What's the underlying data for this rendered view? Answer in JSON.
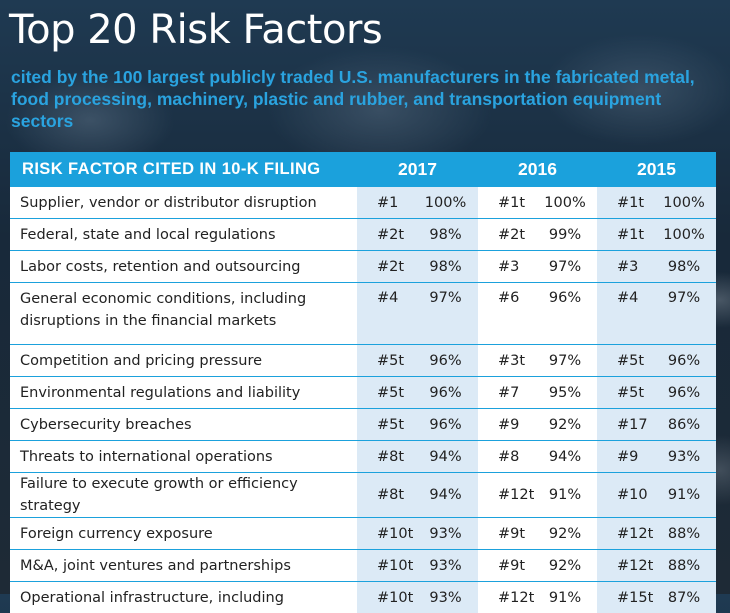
{
  "header": {
    "title": "Top 20 Risk Factors",
    "subtitle": "cited by the 100 largest publicly traded U.S. manufacturers in the fabricated metal, food processing, machinery, plastic and rubber, and transportation equipment sectors"
  },
  "table": {
    "columns": {
      "factor": "RISK FACTOR CITED IN 10-K FILING",
      "years": [
        "2017",
        "2016",
        "2015"
      ]
    },
    "rows": [
      {
        "factor": "Supplier, vendor or distributor disruption",
        "r2017": "#1",
        "p2017": "100%",
        "r2016": "#1t",
        "p2016": "100%",
        "r2015": "#1t",
        "p2015": "100%"
      },
      {
        "factor": "Federal, state and local regulations",
        "r2017": "#2t",
        "p2017": "98%",
        "r2016": "#2t",
        "p2016": "99%",
        "r2015": "#1t",
        "p2015": "100%"
      },
      {
        "factor": "Labor costs, retention and outsourcing",
        "r2017": "#2t",
        "p2017": "98%",
        "r2016": "#3",
        "p2016": "97%",
        "r2015": "#3",
        "p2015": "98%"
      },
      {
        "factor_line1": "General economic conditions, including",
        "factor_line2": "disruptions in the financial markets",
        "r2017": "#4",
        "p2017": "97%",
        "r2016": "#6",
        "p2016": "96%",
        "r2015": "#4",
        "p2015": "97%"
      },
      {
        "factor": "Competition and pricing pressure",
        "r2017": "#5t",
        "p2017": "96%",
        "r2016": "#3t",
        "p2016": "97%",
        "r2015": "#5t",
        "p2015": "96%"
      },
      {
        "factor": "Environmental regulations and liability",
        "r2017": "#5t",
        "p2017": "96%",
        "r2016": "#7",
        "p2016": "95%",
        "r2015": "#5t",
        "p2015": "96%"
      },
      {
        "factor": "Cybersecurity breaches",
        "r2017": "#5t",
        "p2017": "96%",
        "r2016": "#9",
        "p2016": "92%",
        "r2015": "#17",
        "p2015": "86%"
      },
      {
        "factor": "Threats to international operations",
        "r2017": "#8t",
        "p2017": "94%",
        "r2016": "#8",
        "p2016": "94%",
        "r2015": "#9",
        "p2015": "93%"
      },
      {
        "factor": "Failure to execute growth or efficiency strategy",
        "r2017": "#8t",
        "p2017": "94%",
        "r2016": "#12t",
        "p2016": "91%",
        "r2015": "#10",
        "p2015": "91%"
      },
      {
        "factor": "Foreign currency exposure",
        "r2017": "#10t",
        "p2017": "93%",
        "r2016": "#9t",
        "p2016": "92%",
        "r2015": "#12t",
        "p2015": "88%"
      },
      {
        "factor": "M&A, joint ventures and partnerships",
        "r2017": "#10t",
        "p2017": "93%",
        "r2016": "#9t",
        "p2016": "92%",
        "r2015": "#12t",
        "p2015": "88%"
      },
      {
        "factor": "Operational infrastructure, including",
        "r2017": "#10t",
        "p2017": "93%",
        "r2016": "#12t",
        "p2016": "91%",
        "r2015": "#15t",
        "p2015": "87%"
      }
    ]
  }
}
